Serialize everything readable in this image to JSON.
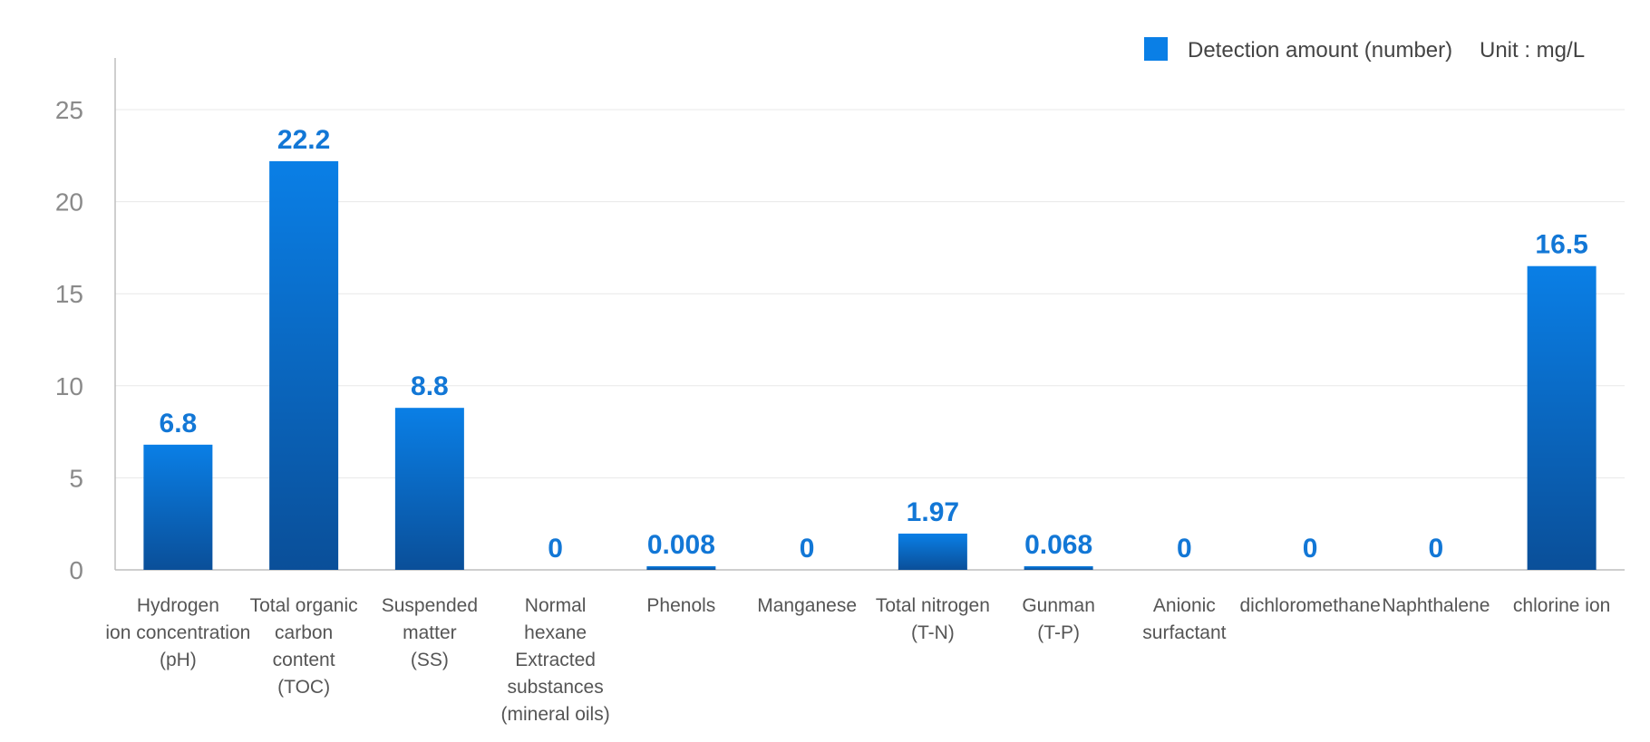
{
  "legend": {
    "series_label": "Detection amount (number)",
    "unit_label": "Unit : mg/L"
  },
  "colors": {
    "bar_top": "#0a7fe6",
    "bar_bottom": "#0a4f99",
    "value_label": "#1277d6",
    "grid": "#e8e8e8",
    "axis": "#bdbdbd"
  },
  "chart_data": {
    "type": "bar",
    "categories": [
      [
        "Hydrogen",
        "ion concentration",
        "(pH)"
      ],
      [
        "Total organic",
        "carbon",
        "content",
        "(TOC)"
      ],
      [
        "Suspended",
        "matter",
        "(SS)"
      ],
      [
        "Normal",
        "hexane",
        "Extracted",
        "substances",
        "(mineral oils)"
      ],
      [
        "Phenols"
      ],
      [
        "Manganese"
      ],
      [
        "Total nitrogen",
        "(T-N)"
      ],
      [
        "Gunman",
        "(T-P)"
      ],
      [
        "Anionic",
        "surfactant"
      ],
      [
        "dichloromethane"
      ],
      [
        "Naphthalene"
      ],
      [
        "chlorine ion"
      ]
    ],
    "series": [
      {
        "name": "Detection amount (number)",
        "values": [
          6.8,
          22.2,
          8.8,
          0,
          0.008,
          0,
          1.97,
          0.068,
          0,
          0,
          0,
          16.5
        ],
        "value_labels": [
          "6.8",
          "22.2",
          "8.8",
          "0",
          "0.008",
          "0",
          "1.97",
          "0.068",
          "0",
          "0",
          "0",
          "16.5"
        ]
      }
    ],
    "ylim": [
      0,
      25
    ],
    "yticks": [
      0,
      5,
      10,
      15,
      20,
      25
    ],
    "grid": true,
    "legend_position": "top-right"
  }
}
